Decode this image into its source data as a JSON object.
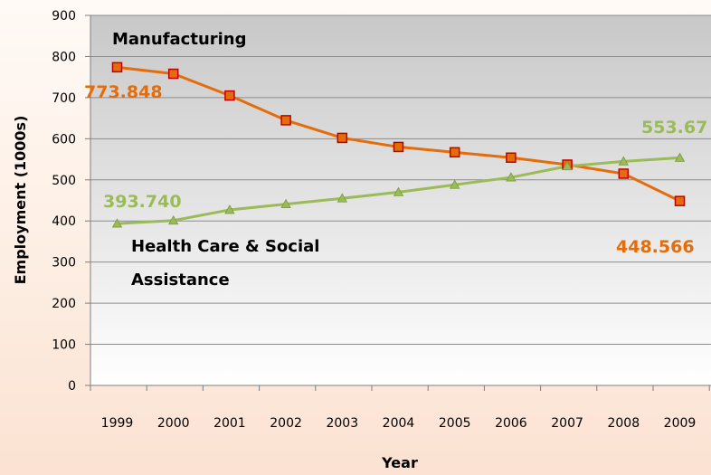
{
  "chart_data": {
    "type": "line",
    "title": "",
    "xlabel": "Year",
    "ylabel": "Employment (1000s)",
    "ylim": [
      0,
      900
    ],
    "yticks": [
      0,
      100,
      200,
      300,
      400,
      500,
      600,
      700,
      800,
      900
    ],
    "categories": [
      "1999",
      "2000",
      "2001",
      "2002",
      "2003",
      "2004",
      "2005",
      "2006",
      "2007",
      "2008",
      "2009"
    ],
    "grid": true,
    "legend": "none",
    "series": [
      {
        "name": "Manufacturing",
        "color": "#e46c0a",
        "marker": "square",
        "values": [
          773.848,
          758,
          705,
          645,
          602,
          580,
          567,
          554,
          537,
          515,
          448.566
        ]
      },
      {
        "name": "Health Care & Social Assistance",
        "color": "#9bbb59",
        "marker": "triangle",
        "values": [
          393.74,
          401,
          427,
          441,
          455,
          470,
          488,
          506,
          533,
          545,
          553.67
        ]
      }
    ],
    "annotations": {
      "manufacturing_label": "Manufacturing",
      "health_label_line1": "Health Care & Social",
      "health_label_line2": "Assistance",
      "mfg_start": "773.848",
      "mfg_end": "448.566",
      "health_start": "393.740",
      "health_end": "553.67"
    }
  }
}
